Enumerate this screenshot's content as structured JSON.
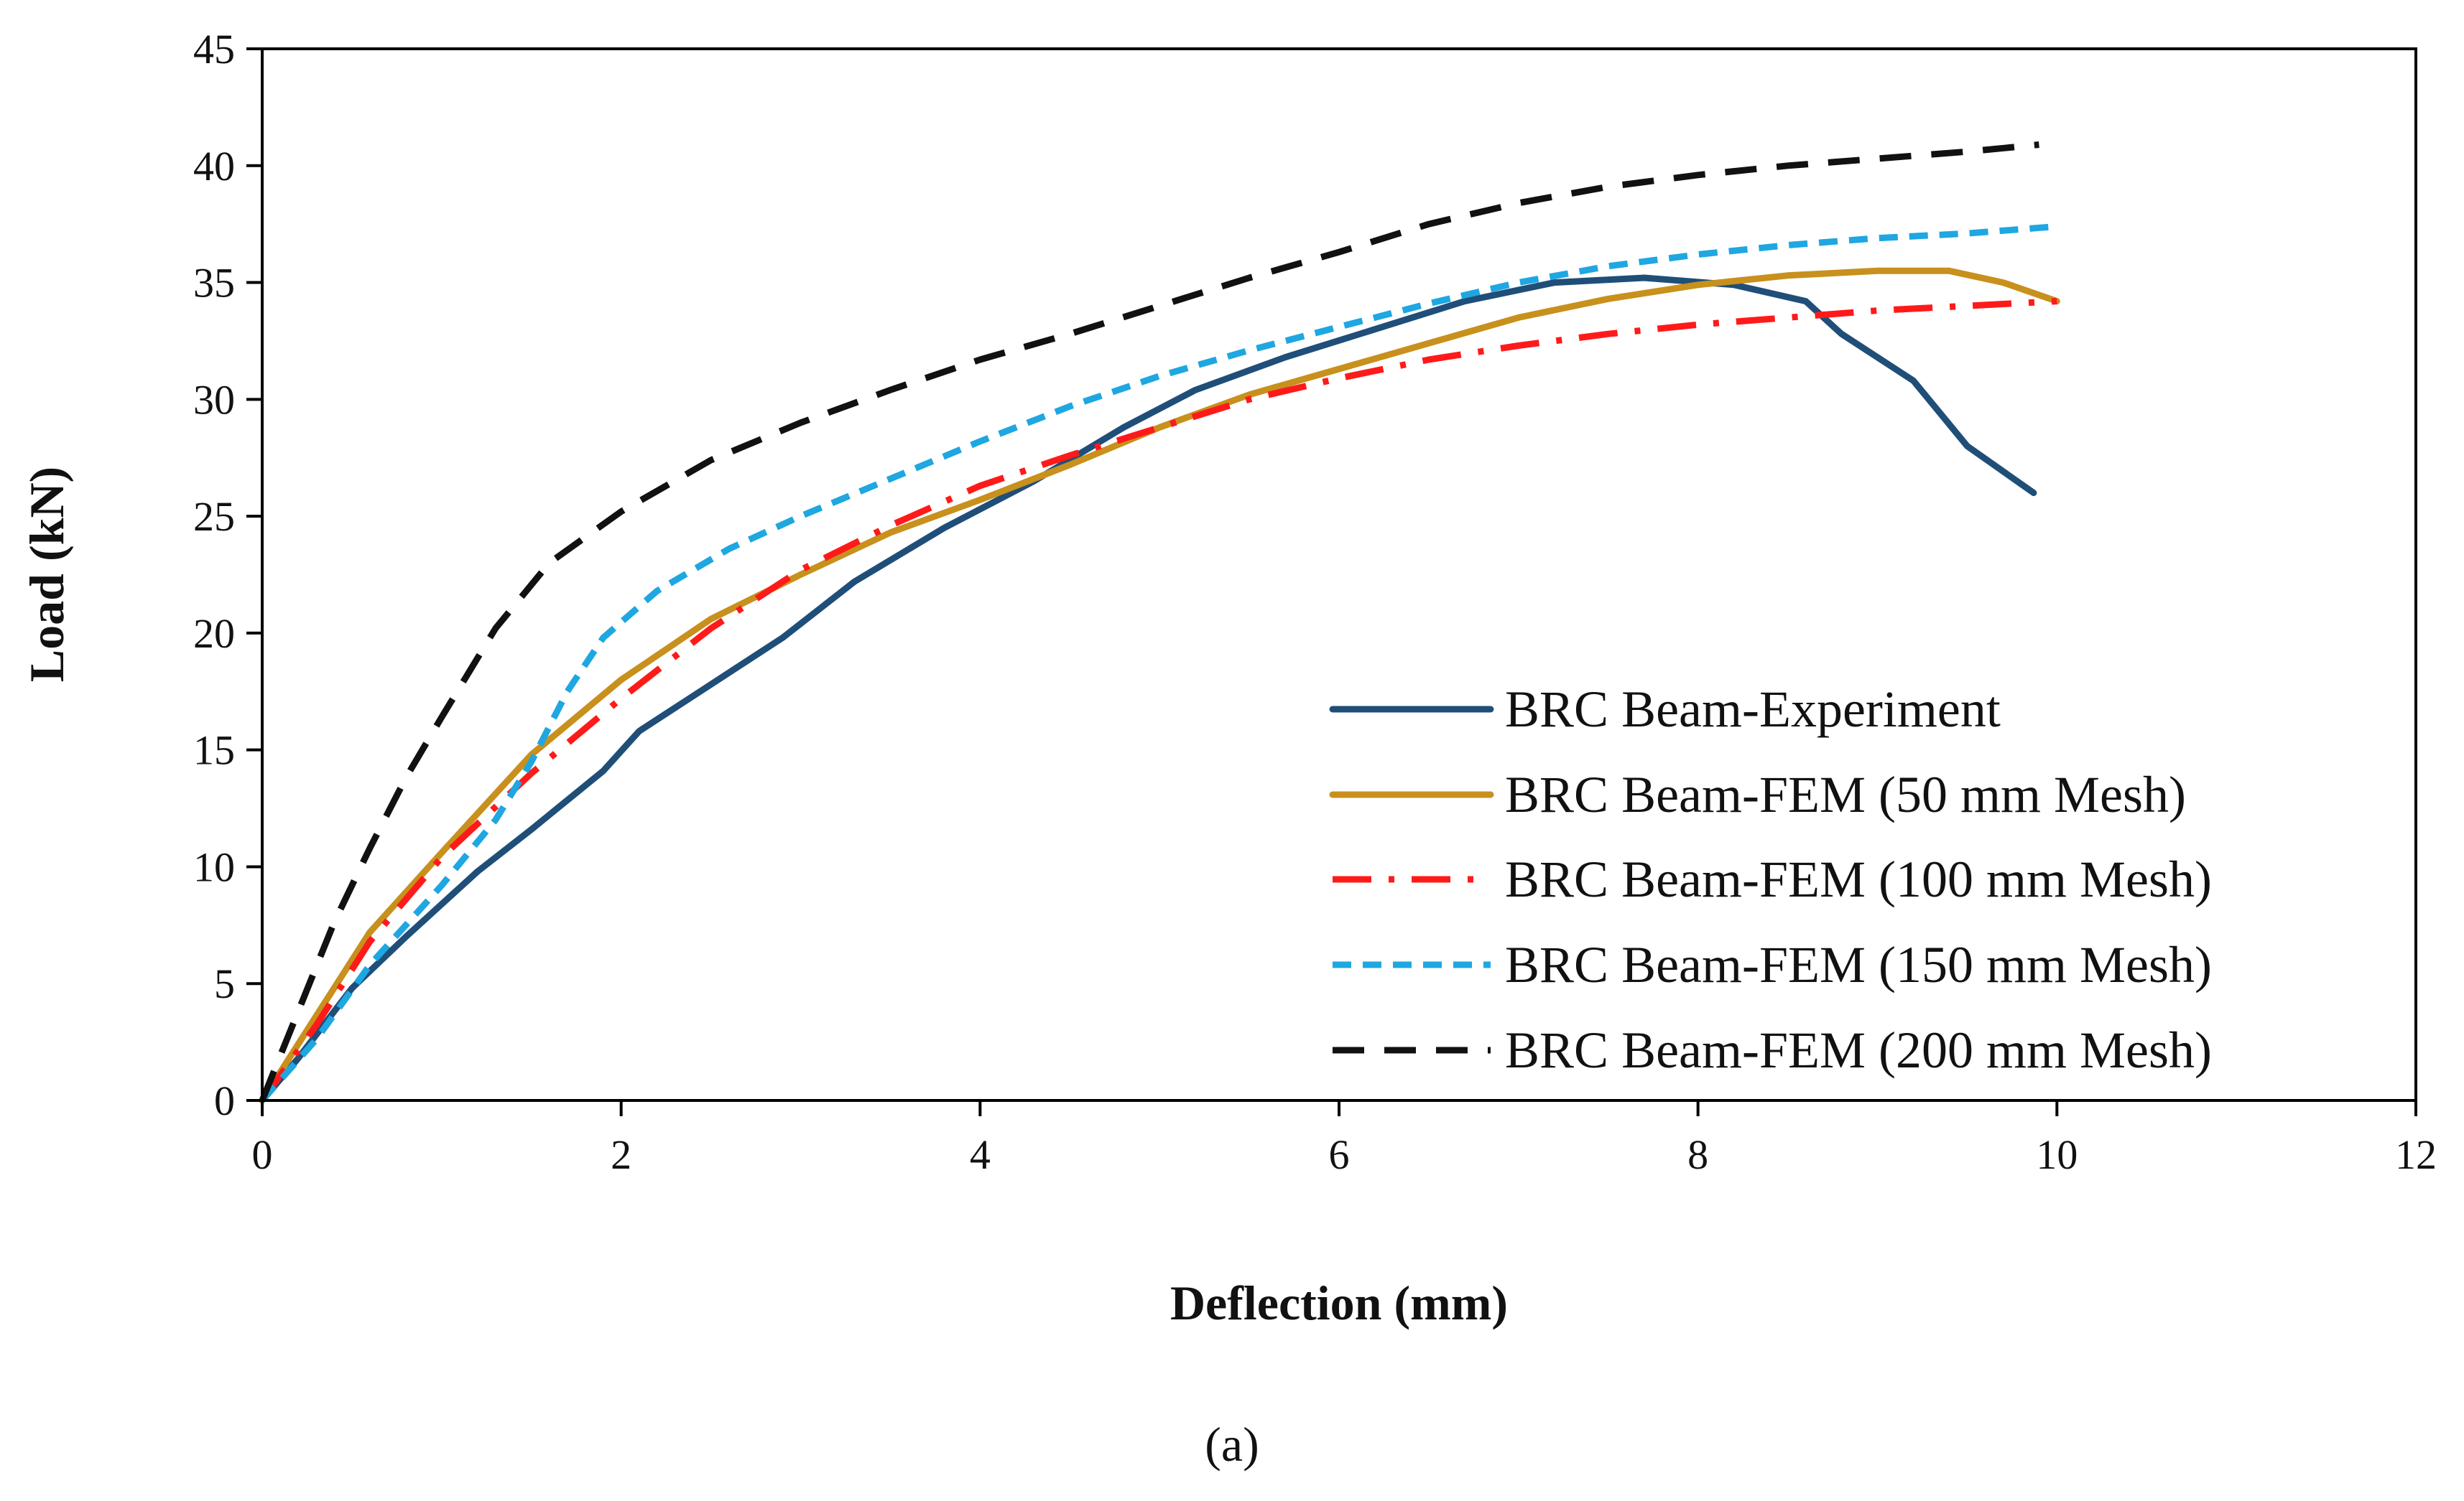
{
  "chart_data": {
    "type": "line",
    "title": "",
    "xlabel": "Deflection (mm)",
    "ylabel": "Load (kN)",
    "caption": "(a)",
    "xlim": [
      0,
      12
    ],
    "ylim": [
      0,
      45
    ],
    "xticks": [
      0,
      2,
      4,
      6,
      8,
      10,
      12
    ],
    "yticks": [
      0,
      5,
      10,
      15,
      20,
      25,
      30,
      35,
      40,
      45
    ],
    "grid": false,
    "legend_position": "bottom-right",
    "series": [
      {
        "name": "BRC Beam-Experiment",
        "color": "#1f4e79",
        "style": "solid",
        "points": [
          [
            0,
            0
          ],
          [
            0.2,
            1.8
          ],
          [
            0.5,
            4.8
          ],
          [
            0.8,
            7.0
          ],
          [
            1.2,
            9.8
          ],
          [
            1.5,
            11.6
          ],
          [
            1.9,
            14.1
          ],
          [
            2.1,
            15.8
          ],
          [
            2.5,
            17.8
          ],
          [
            2.9,
            19.8
          ],
          [
            3.3,
            22.2
          ],
          [
            3.8,
            24.5
          ],
          [
            4.3,
            26.5
          ],
          [
            4.8,
            28.8
          ],
          [
            5.2,
            30.4
          ],
          [
            5.7,
            31.8
          ],
          [
            6.2,
            33.0
          ],
          [
            6.7,
            34.2
          ],
          [
            7.2,
            35.0
          ],
          [
            7.7,
            35.2
          ],
          [
            8.2,
            34.9
          ],
          [
            8.6,
            34.2
          ],
          [
            8.8,
            32.8
          ],
          [
            9.2,
            30.8
          ],
          [
            9.5,
            28.0
          ],
          [
            9.87,
            26.0
          ]
        ]
      },
      {
        "name": "BRC Beam-FEM (50 mm Mesh)",
        "color": "#c8901c",
        "style": "solid",
        "points": [
          [
            0,
            0
          ],
          [
            0.3,
            3.6
          ],
          [
            0.6,
            7.2
          ],
          [
            1.0,
            10.6
          ],
          [
            1.5,
            14.8
          ],
          [
            2.0,
            18.0
          ],
          [
            2.5,
            20.6
          ],
          [
            3.0,
            22.5
          ],
          [
            3.5,
            24.3
          ],
          [
            4.0,
            25.7
          ],
          [
            4.5,
            27.2
          ],
          [
            5.0,
            28.8
          ],
          [
            5.5,
            30.2
          ],
          [
            6.0,
            31.3
          ],
          [
            6.5,
            32.4
          ],
          [
            7.0,
            33.5
          ],
          [
            7.5,
            34.3
          ],
          [
            8.0,
            34.9
          ],
          [
            8.5,
            35.3
          ],
          [
            9.0,
            35.5
          ],
          [
            9.4,
            35.5
          ],
          [
            9.7,
            35.0
          ],
          [
            10.0,
            34.2
          ]
        ]
      },
      {
        "name": "BRC Beam-FEM (100 mm Mesh)",
        "color": "#ff1a1a",
        "style": "dashdot",
        "points": [
          [
            0,
            0
          ],
          [
            0.3,
            3.2
          ],
          [
            0.6,
            6.8
          ],
          [
            1.0,
            10.4
          ],
          [
            1.5,
            14.0
          ],
          [
            2.0,
            17.2
          ],
          [
            2.5,
            20.2
          ],
          [
            3.0,
            22.7
          ],
          [
            3.5,
            24.6
          ],
          [
            4.0,
            26.3
          ],
          [
            4.5,
            27.6
          ],
          [
            5.0,
            28.8
          ],
          [
            5.5,
            30.0
          ],
          [
            6.0,
            30.9
          ],
          [
            6.5,
            31.7
          ],
          [
            7.0,
            32.3
          ],
          [
            7.5,
            32.8
          ],
          [
            8.0,
            33.2
          ],
          [
            8.5,
            33.5
          ],
          [
            9.0,
            33.8
          ],
          [
            9.5,
            34.0
          ],
          [
            10.0,
            34.2
          ]
        ]
      },
      {
        "name": "BRC Beam-FEM (150 mm Mesh)",
        "color": "#1ea7e1",
        "style": "dashed",
        "points": [
          [
            0,
            0
          ],
          [
            0.3,
            2.6
          ],
          [
            0.6,
            5.8
          ],
          [
            1.0,
            9.2
          ],
          [
            1.3,
            12.0
          ],
          [
            1.5,
            14.5
          ],
          [
            1.7,
            17.5
          ],
          [
            1.9,
            19.8
          ],
          [
            2.2,
            21.8
          ],
          [
            2.6,
            23.6
          ],
          [
            3.0,
            25.0
          ],
          [
            3.5,
            26.6
          ],
          [
            4.0,
            28.2
          ],
          [
            4.5,
            29.7
          ],
          [
            5.0,
            31.0
          ],
          [
            5.5,
            32.1
          ],
          [
            6.0,
            33.1
          ],
          [
            6.5,
            34.1
          ],
          [
            7.0,
            35.0
          ],
          [
            7.5,
            35.7
          ],
          [
            8.0,
            36.2
          ],
          [
            8.5,
            36.6
          ],
          [
            9.0,
            36.9
          ],
          [
            9.5,
            37.1
          ],
          [
            10.0,
            37.4
          ]
        ]
      },
      {
        "name": "BRC Beam-FEM (200 mm Mesh)",
        "color": "#111111",
        "style": "longdash",
        "points": [
          [
            0,
            0
          ],
          [
            0.2,
            3.8
          ],
          [
            0.4,
            7.6
          ],
          [
            0.6,
            10.8
          ],
          [
            0.8,
            13.8
          ],
          [
            1.0,
            16.4
          ],
          [
            1.3,
            20.2
          ],
          [
            1.6,
            23.0
          ],
          [
            2.0,
            25.2
          ],
          [
            2.5,
            27.4
          ],
          [
            3.0,
            29.0
          ],
          [
            3.5,
            30.4
          ],
          [
            4.0,
            31.7
          ],
          [
            4.5,
            32.8
          ],
          [
            5.0,
            34.0
          ],
          [
            5.5,
            35.2
          ],
          [
            6.0,
            36.3
          ],
          [
            6.5,
            37.5
          ],
          [
            7.0,
            38.4
          ],
          [
            7.5,
            39.1
          ],
          [
            8.0,
            39.6
          ],
          [
            8.5,
            40.0
          ],
          [
            9.0,
            40.3
          ],
          [
            9.5,
            40.6
          ],
          [
            9.9,
            40.9
          ]
        ]
      }
    ]
  }
}
